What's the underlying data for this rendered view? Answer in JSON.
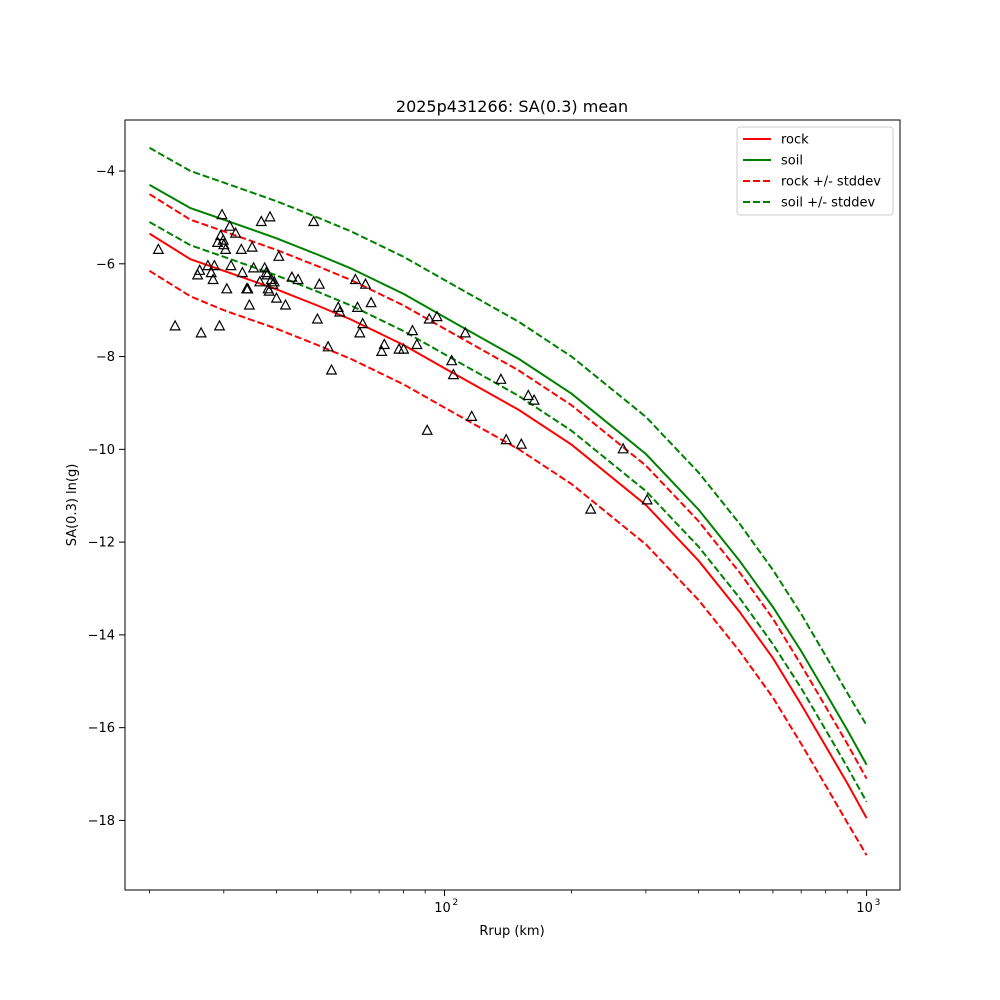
{
  "chart_data": {
    "type": "line",
    "title": "2025p431266: SA(0.3) mean",
    "xlabel": "Rrup (km)",
    "ylabel": "SA(0.3) ln(g)",
    "xscale": "log",
    "xlim": [
      17.5,
      1200
    ],
    "ylim": [
      -19.5,
      -2.9
    ],
    "xticks": [
      {
        "value": 100,
        "base": "10",
        "exp": "2"
      },
      {
        "value": 1000,
        "base": "10",
        "exp": "3"
      }
    ],
    "yticks": [
      -4,
      -6,
      -8,
      -10,
      -12,
      -14,
      -16,
      -18
    ],
    "ytick_labels": [
      "−4",
      "−6",
      "−8",
      "−10",
      "−12",
      "−14",
      "−16",
      "−18"
    ],
    "grid": false,
    "legend_position": "top-right",
    "series": [
      {
        "name": "rock",
        "color": "#ff0000",
        "dash": "solid",
        "x": [
          20,
          25,
          30,
          40,
          50,
          60,
          80,
          100,
          150,
          200,
          300,
          400,
          500,
          600,
          700,
          800,
          900,
          1000
        ],
        "y": [
          -5.35,
          -5.9,
          -6.15,
          -6.55,
          -6.9,
          -7.2,
          -7.75,
          -8.25,
          -9.15,
          -9.9,
          -11.2,
          -12.4,
          -13.5,
          -14.5,
          -15.5,
          -16.4,
          -17.2,
          -17.95
        ]
      },
      {
        "name": "soil",
        "color": "#008000",
        "dash": "solid",
        "x": [
          20,
          25,
          30,
          40,
          50,
          60,
          80,
          100,
          150,
          200,
          300,
          400,
          500,
          600,
          700,
          800,
          900,
          1000
        ],
        "y": [
          -4.3,
          -4.8,
          -5.05,
          -5.45,
          -5.8,
          -6.1,
          -6.65,
          -7.15,
          -8.05,
          -8.8,
          -10.1,
          -11.3,
          -12.4,
          -13.4,
          -14.35,
          -15.25,
          -16.05,
          -16.8
        ]
      },
      {
        "name": "rock +/- stddev",
        "color": "#ff0000",
        "dash": "dashed",
        "x": [
          20,
          25,
          30,
          40,
          50,
          60,
          80,
          100,
          150,
          200,
          300,
          400,
          500,
          600,
          700,
          800,
          900,
          1000
        ],
        "y": [
          -4.5,
          -5.05,
          -5.3,
          -5.7,
          -6.05,
          -6.35,
          -6.9,
          -7.4,
          -8.3,
          -9.05,
          -10.35,
          -11.55,
          -12.65,
          -13.65,
          -14.65,
          -15.55,
          -16.35,
          -17.1
        ]
      },
      {
        "name": "",
        "color": "#ff0000",
        "dash": "dashed",
        "x": [
          20,
          25,
          30,
          40,
          50,
          60,
          80,
          100,
          150,
          200,
          300,
          400,
          500,
          600,
          700,
          800,
          900,
          1000
        ],
        "y": [
          -6.15,
          -6.7,
          -7.0,
          -7.4,
          -7.75,
          -8.05,
          -8.6,
          -9.1,
          -10.0,
          -10.75,
          -12.05,
          -13.25,
          -14.35,
          -15.35,
          -16.35,
          -17.25,
          -18.05,
          -18.75
        ]
      },
      {
        "name": "soil +/- stddev",
        "color": "#008000",
        "dash": "dashed",
        "x": [
          20,
          25,
          30,
          40,
          50,
          60,
          80,
          100,
          150,
          200,
          300,
          400,
          500,
          600,
          700,
          800,
          900,
          1000
        ],
        "y": [
          -3.5,
          -4.0,
          -4.25,
          -4.65,
          -5.0,
          -5.3,
          -5.85,
          -6.35,
          -7.25,
          -8.0,
          -9.3,
          -10.5,
          -11.6,
          -12.6,
          -13.55,
          -14.45,
          -15.25,
          -15.95
        ]
      },
      {
        "name": "",
        "color": "#008000",
        "dash": "dashed",
        "x": [
          20,
          25,
          30,
          40,
          50,
          60,
          80,
          100,
          150,
          200,
          300,
          400,
          500,
          600,
          700,
          800,
          900,
          1000
        ],
        "y": [
          -5.1,
          -5.6,
          -5.85,
          -6.25,
          -6.6,
          -6.9,
          -7.45,
          -7.95,
          -8.85,
          -9.6,
          -10.9,
          -12.1,
          -13.2,
          -14.2,
          -15.15,
          -16.05,
          -16.85,
          -17.6
        ]
      }
    ],
    "observations": {
      "marker": "triangle",
      "x": [
        21,
        23,
        26,
        26.3,
        26.5,
        27.5,
        28,
        28.3,
        28.5,
        29,
        29.3,
        29.5,
        29.7,
        29.9,
        30,
        30.3,
        30.5,
        31,
        31.2,
        32,
        33,
        33.2,
        34,
        34.2,
        34.5,
        35,
        35.3,
        36.5,
        36.8,
        37.5,
        37.8,
        38,
        38.2,
        38.4,
        38.6,
        38.9,
        39.2,
        39.5,
        40,
        40.5,
        42,
        43.5,
        45,
        49,
        50,
        50.5,
        53,
        54,
        56,
        56.5,
        61.5,
        62.2,
        63,
        64,
        65,
        67,
        71,
        72,
        78,
        80,
        84,
        86,
        91,
        92,
        96,
        104,
        105,
        112,
        116,
        136,
        140,
        152,
        158,
        163,
        222,
        265,
        302
      ],
      "y": [
        -5.7,
        -7.35,
        -6.25,
        -6.15,
        -7.5,
        -6.05,
        -6.2,
        -6.35,
        -6.05,
        -5.55,
        -7.35,
        -5.4,
        -4.95,
        -5.5,
        -5.6,
        -5.7,
        -6.55,
        -5.2,
        -6.05,
        -5.35,
        -5.7,
        -6.2,
        -6.55,
        -6.55,
        -6.9,
        -5.65,
        -6.1,
        -6.4,
        -5.1,
        -6.1,
        -6.2,
        -6.25,
        -6.55,
        -6.6,
        -5.0,
        -6.35,
        -6.45,
        -6.4,
        -6.75,
        -5.85,
        -6.9,
        -6.3,
        -6.35,
        -5.1,
        -7.2,
        -6.45,
        -7.8,
        -8.3,
        -6.95,
        -7.05,
        -6.35,
        -6.95,
        -7.5,
        -7.3,
        -6.45,
        -6.85,
        -7.9,
        -7.75,
        -7.85,
        -7.85,
        -7.45,
        -7.75,
        -9.6,
        -7.2,
        -7.15,
        -8.1,
        -8.4,
        -7.5,
        -9.3,
        -8.5,
        -9.8,
        -9.9,
        -8.85,
        -8.95,
        -11.3,
        -10.0,
        -11.1
      ]
    }
  }
}
